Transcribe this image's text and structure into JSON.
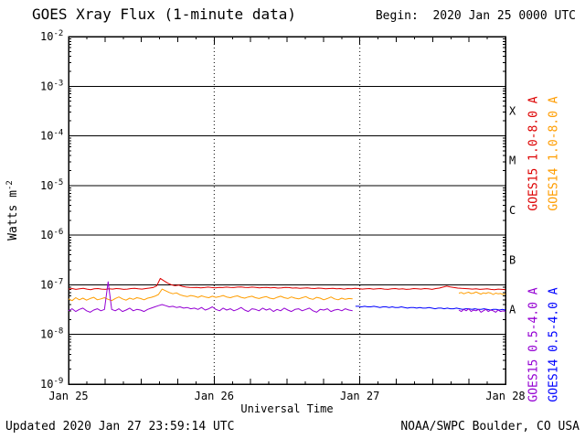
{
  "footer": {
    "updated": "Updated 2020 Jan 27 23:59:14 UTC",
    "credit": "NOAA/SWPC Boulder, CO USA"
  },
  "chart_data": {
    "type": "line",
    "title": "GOES Xray Flux (1-minute data)",
    "begin_label": "Begin:  2020 Jan 25 0000 UTC",
    "xlabel": "Universal Time",
    "ylabel": {
      "base": "Watts m",
      "exp": "-2"
    },
    "x_range_days": [
      0,
      3
    ],
    "x_ticks": [
      {
        "label": "Jan 25",
        "day": 0
      },
      {
        "label": "Jan 26",
        "day": 1
      },
      {
        "label": "Jan 27",
        "day": 2
      },
      {
        "label": "Jan 28",
        "day": 3
      }
    ],
    "y_ticks": [
      "-2",
      "-3",
      "-4",
      "-5",
      "-6",
      "-7",
      "-8",
      "-9"
    ],
    "hlines_log": [
      -3,
      -4,
      -5,
      -6,
      -7,
      -8
    ],
    "vlines_days": [
      1,
      2
    ],
    "class_bands": [
      {
        "label": "X",
        "log_mid": -3.5
      },
      {
        "label": "M",
        "log_mid": -4.5
      },
      {
        "label": "C",
        "log_mid": -5.5
      },
      {
        "label": "B",
        "log_mid": -6.5
      },
      {
        "label": "A",
        "log_mid": -7.5
      }
    ],
    "legend": [
      {
        "label": "GOES15 1.0-8.0 A",
        "color": "#dd0000"
      },
      {
        "label": "GOES14 1.0-8.0 A",
        "color": "#ff9d00"
      },
      {
        "label": "GOES15 0.5-4.0 A",
        "color": "#9400d3"
      },
      {
        "label": "GOES14 0.5-4.0 A",
        "color": "#0000ff"
      }
    ],
    "series": [
      {
        "name": "GOES15 1.0-8.0 A",
        "color": "#dd0000",
        "scale": 1e-08,
        "segments": [
          {
            "x0": 0,
            "x1": 3,
            "values": [
              8.2,
              8.4,
              8.1,
              8.3,
              8.5,
              8.2,
              8.0,
              8.3,
              8.4,
              8.2,
              8.1,
              8.3,
              8.2,
              8.4,
              8.3,
              8.1,
              8.2,
              8.4,
              8.5,
              8.3,
              8.2,
              8.4,
              8.6,
              8.8,
              9.5,
              13.5,
              12.0,
              10.8,
              10.0,
              9.6,
              9.9,
              9.3,
              9.0,
              8.9,
              8.8,
              8.9,
              8.7,
              8.8,
              9.0,
              8.8,
              8.7,
              8.9,
              8.8,
              9.0,
              8.9,
              8.8,
              9.0,
              9.1,
              8.9,
              8.8,
              9.0,
              8.9,
              8.7,
              8.8,
              8.9,
              8.7,
              8.8,
              8.6,
              8.7,
              8.9,
              8.8,
              8.6,
              8.7,
              8.5,
              8.6,
              8.7,
              8.5,
              8.4,
              8.6,
              8.5,
              8.3,
              8.4,
              8.5,
              8.3,
              8.4,
              8.2,
              8.4,
              8.3,
              8.5,
              8.4,
              8.2,
              8.3,
              8.4,
              8.2,
              8.3,
              8.4,
              8.2,
              8.1,
              8.3,
              8.4,
              8.2,
              8.3,
              8.1,
              8.2,
              8.4,
              8.3,
              8.2,
              8.4,
              8.3,
              8.1,
              8.4,
              8.6,
              9.0,
              9.4,
              9.1,
              8.8,
              8.6,
              8.5,
              8.4,
              8.3,
              8.2,
              8.3,
              8.1,
              8.2,
              8.3,
              8.1,
              8.0,
              8.2,
              8.1,
              8.0
            ]
          }
        ]
      },
      {
        "name": "GOES14 1.0-8.0 A",
        "color": "#ff9d00",
        "scale": 1e-08,
        "segments": [
          {
            "x0": 0,
            "x1": 1.95,
            "values": [
              5.2,
              4.8,
              5.5,
              5.0,
              5.4,
              4.9,
              5.3,
              5.6,
              5.0,
              5.2,
              5.5,
              5.1,
              4.8,
              5.3,
              5.7,
              5.2,
              4.9,
              5.4,
              5.1,
              5.5,
              5.3,
              5.0,
              5.4,
              5.6,
              5.9,
              6.4,
              8.2,
              7.6,
              7.0,
              6.6,
              6.9,
              6.3,
              6.0,
              5.8,
              6.1,
              5.9,
              5.6,
              6.0,
              5.7,
              5.5,
              5.9,
              5.6,
              5.8,
              6.1,
              5.7,
              5.5,
              5.8,
              6.0,
              5.6,
              5.4,
              5.7,
              5.9,
              5.5,
              5.3,
              5.6,
              5.8,
              5.4,
              5.2,
              5.6,
              5.9,
              5.5,
              5.3,
              5.7,
              5.4,
              5.2,
              5.5,
              5.8,
              5.3,
              5.1,
              5.6,
              5.4,
              5.0,
              5.3,
              5.7,
              5.2,
              5.0,
              5.4,
              5.1,
              5.3,
              5.2
            ]
          },
          {
            "x0": 2.68,
            "x1": 3,
            "values": [
              6.8,
              7.0,
              6.6,
              6.9,
              7.1,
              6.7,
              6.8,
              7.2,
              6.8,
              6.5,
              6.9,
              6.7,
              7.0,
              6.8,
              6.4,
              6.8,
              6.6,
              6.7,
              6.4,
              6.6
            ]
          }
        ]
      },
      {
        "name": "GOES14 0.5-4.0 A",
        "color": "#0000ff",
        "scale": 1e-08,
        "segments": [
          {
            "x0": 1.97,
            "x1": 3,
            "values": [
              3.7,
              3.7,
              3.6,
              3.7,
              3.6,
              3.6,
              3.7,
              3.6,
              3.5,
              3.6,
              3.6,
              3.5,
              3.6,
              3.5,
              3.5,
              3.6,
              3.5,
              3.4,
              3.5,
              3.5,
              3.4,
              3.5,
              3.4,
              3.4,
              3.5,
              3.4,
              3.3,
              3.4,
              3.4,
              3.3,
              3.4,
              3.3,
              3.3,
              3.4,
              3.3,
              3.2,
              3.3,
              3.3,
              3.2,
              3.3,
              3.2,
              3.2,
              3.3,
              3.2,
              3.1,
              3.2,
              3.2,
              3.1,
              3.2,
              3.1
            ]
          }
        ]
      },
      {
        "name": "GOES15 0.5-4.0 A",
        "color": "#9400d3",
        "scale": 1e-08,
        "segments": [
          {
            "x0": 0,
            "x1": 1.95,
            "values": [
              3.0,
              3.3,
              2.9,
              3.2,
              3.4,
              3.0,
              2.8,
              3.1,
              3.3,
              3.0,
              3.2,
              11.5,
              3.2,
              3.0,
              3.3,
              2.9,
              3.1,
              3.4,
              3.0,
              3.2,
              3.1,
              2.9,
              3.2,
              3.4,
              3.6,
              3.8,
              4.0,
              3.8,
              3.6,
              3.7,
              3.5,
              3.6,
              3.4,
              3.5,
              3.3,
              3.4,
              3.2,
              3.5,
              3.1,
              3.3,
              3.6,
              3.2,
              3.0,
              3.4,
              3.1,
              3.3,
              3.0,
              3.2,
              3.5,
              3.1,
              2.9,
              3.3,
              3.2,
              3.0,
              3.4,
              3.1,
              3.3,
              2.9,
              3.2,
              3.0,
              3.4,
              3.1,
              2.9,
              3.2,
              3.3,
              3.0,
              3.2,
              3.4,
              3.0,
              2.8,
              3.2,
              3.1,
              3.3,
              2.9,
              3.1,
              3.2,
              3.0,
              3.3,
              3.1,
              3.0
            ]
          },
          {
            "x0": 2.68,
            "x1": 3,
            "values": [
              3.1,
              2.9,
              3.2,
              3.0,
              3.3,
              2.9,
              3.1,
              3.0,
              3.2,
              2.8,
              3.0,
              3.2,
              2.9,
              3.1,
              3.0,
              2.8,
              3.1,
              2.9,
              3.0,
              2.9
            ]
          }
        ]
      }
    ]
  }
}
